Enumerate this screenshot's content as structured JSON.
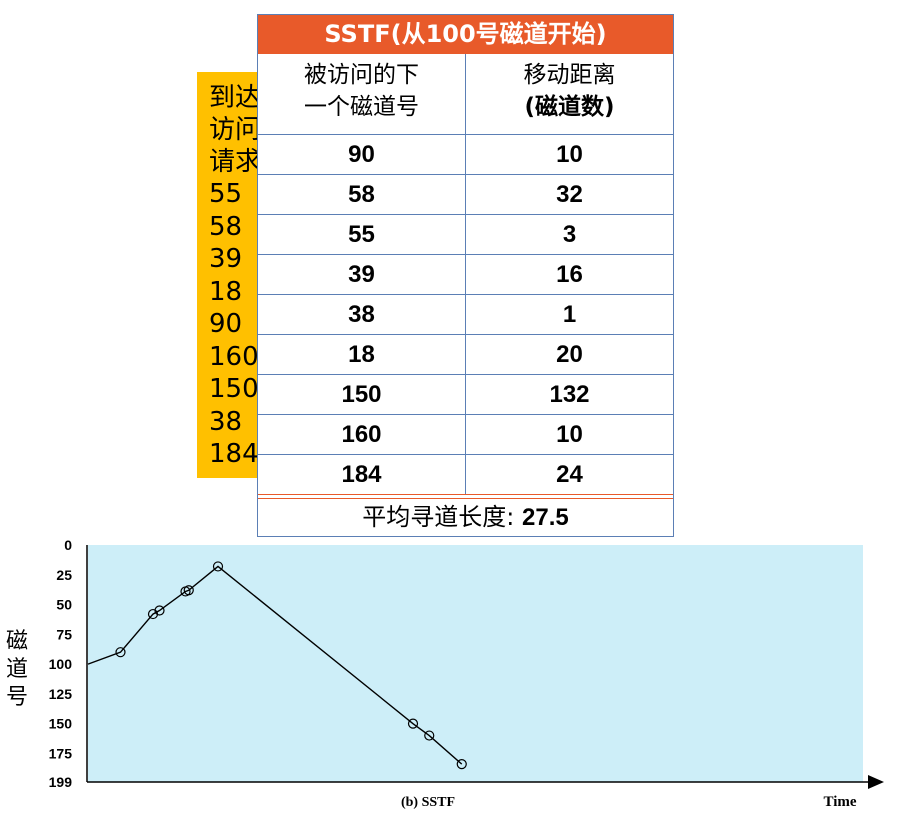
{
  "requests": {
    "title_lines": [
      "到达",
      "访问",
      "请求"
    ],
    "items": [
      "55",
      "58",
      "39",
      "18",
      "90",
      "160",
      "150",
      "38",
      "184"
    ]
  },
  "table": {
    "title": "SSTF(从100号磁道开始)",
    "header_col1": [
      "被访问的下",
      "一个磁道号"
    ],
    "header_col2": [
      "移动距离",
      "(磁道数)"
    ],
    "rows": [
      {
        "track": "90",
        "distance": "10"
      },
      {
        "track": "58",
        "distance": "32"
      },
      {
        "track": "55",
        "distance": "3"
      },
      {
        "track": "39",
        "distance": "16"
      },
      {
        "track": "38",
        "distance": "1"
      },
      {
        "track": "18",
        "distance": "20"
      },
      {
        "track": "150",
        "distance": "132"
      },
      {
        "track": "160",
        "distance": "10"
      },
      {
        "track": "184",
        "distance": "24"
      }
    ],
    "footer_label": "平均寻道长度: ",
    "footer_value": "27.5"
  },
  "chart_data": {
    "type": "line",
    "caption": "(b) SSTF",
    "xlabel": "Time",
    "ylabel": [
      "磁",
      "道",
      "号"
    ],
    "y_ticks": [
      "0",
      "25",
      "50",
      "75",
      "100",
      "125",
      "150",
      "175",
      "199"
    ],
    "ylim": [
      0,
      199
    ],
    "y_inverted": true,
    "start_track": 100,
    "points": [
      {
        "step": 1,
        "track": 90
      },
      {
        "step": 2,
        "track": 58
      },
      {
        "step": 2.2,
        "track": 55
      },
      {
        "step": 3,
        "track": 39
      },
      {
        "step": 3.1,
        "track": 38
      },
      {
        "step": 4,
        "track": 18
      },
      {
        "step": 10,
        "track": 150
      },
      {
        "step": 10.5,
        "track": 160
      },
      {
        "step": 11.5,
        "track": 184
      }
    ],
    "background": "#cdeef8",
    "line_color": "#000000"
  }
}
